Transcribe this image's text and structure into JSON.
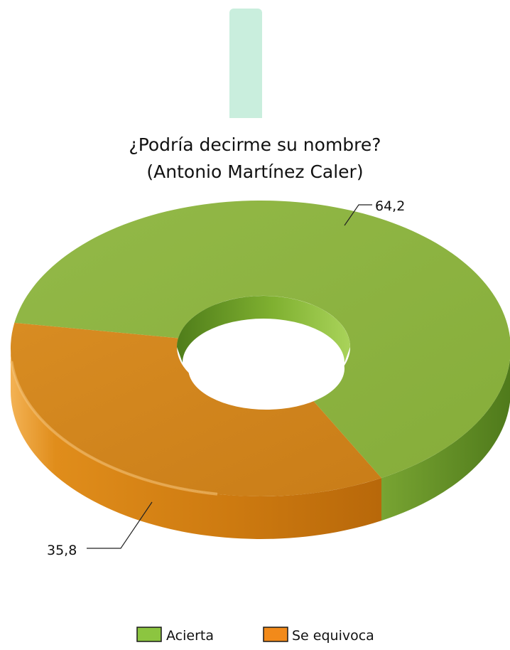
{
  "chart_data": {
    "type": "pie",
    "variant": "3d-donut",
    "title": "¿Podría decirme su nombre?",
    "subtitle": "(Antonio Martínez Caler)",
    "categories": [
      "Acierta",
      "Se equivoca"
    ],
    "values": [
      64.2,
      35.8
    ],
    "value_labels": [
      "64,2",
      "35,8"
    ],
    "colors": [
      "#8cb33f",
      "#d0841c"
    ],
    "legend": {
      "placement": "bottom",
      "entries": [
        "Acierta",
        "Se equivoca"
      ]
    }
  },
  "colors": {
    "green_top": "#8cb33f",
    "green_side": "#5f8a25",
    "green_light": "#a6cc54",
    "orange_top": "#d0841c",
    "orange_side": "#c4720c",
    "orange_light": "#e9a23f",
    "legend_green": "#8cc540",
    "legend_orange": "#f28a1a",
    "top_bar": "#c9eedd"
  }
}
